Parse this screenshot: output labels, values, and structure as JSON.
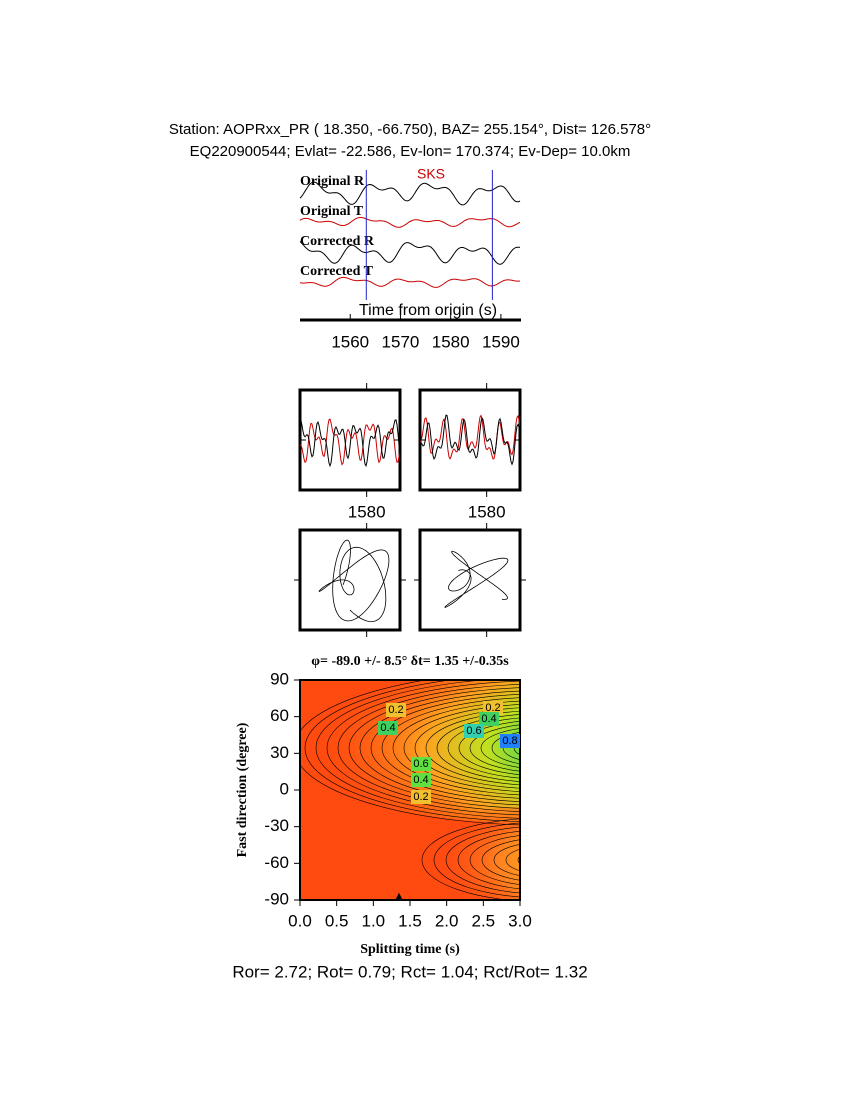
{
  "header": {
    "station_line": "Station: AOPRxx_PR (  18.350,  -66.750), BAZ=  255.154°, Dist=  126.578°",
    "event_line": "EQ220900544; Evlat= -22.586, Ev-lon= 170.374; Ev-Dep= 10.0km"
  },
  "chart_data": [
    {
      "type": "waveform",
      "trace_labels": [
        "Original R",
        "Original T",
        "Corrected R",
        "Corrected T"
      ],
      "phase_label": "SKS",
      "x_label": "Time from origin (s)",
      "xlim": [
        1550,
        1594
      ],
      "xticks": [
        1560,
        1570,
        1580,
        1590
      ],
      "window": [
        1563.2,
        1588.3
      ]
    },
    {
      "type": "zoom",
      "xlim": [
        1570,
        1585
      ],
      "xticks": [
        1580
      ]
    },
    {
      "type": "zoom",
      "xlim": [
        1570,
        1585
      ],
      "xticks": [
        1580
      ]
    },
    {
      "type": "contour",
      "title": "φ= -89.0 +/- 8.5° δt= 1.35 +/-0.35s",
      "x_label": "Splitting time (s)",
      "y_label": "Fast direction (degree)",
      "xlim": [
        0,
        3
      ],
      "ylim": [
        -90,
        90
      ],
      "xticks": [
        {
          "value": 0,
          "label": "0.0"
        },
        {
          "value": 0.5,
          "label": "0.5"
        },
        {
          "value": 1,
          "label": "1.0"
        },
        {
          "value": 1.5,
          "label": "1.5"
        },
        {
          "value": 2,
          "label": "2.0"
        },
        {
          "value": 2.5,
          "label": "2.5"
        },
        {
          "value": 3,
          "label": "3.0"
        }
      ],
      "yticks": [
        -90,
        -60,
        -30,
        0,
        30,
        60,
        90
      ],
      "contour_levels": [
        0.2,
        0.4,
        0.6,
        0.8
      ],
      "best": {
        "x": 1.35,
        "y": -89
      }
    }
  ],
  "footer": "Ror= 2.72; Rot= 0.79; Rct= 1.04; Rct/Rot= 1.32"
}
